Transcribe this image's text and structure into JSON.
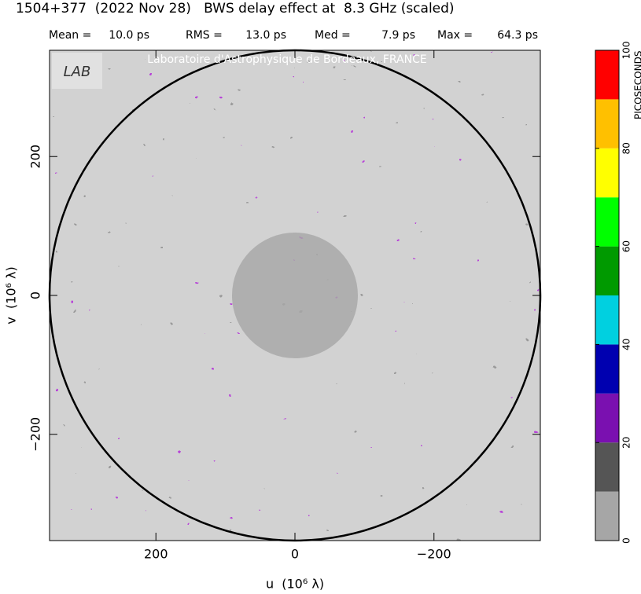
{
  "chart_data": {
    "type": "heatmap",
    "title": "1504+377  (2022 Nov 28)   BWS delay effect at  8.3 GHz (scaled)",
    "stats": [
      {
        "label": "Mean =",
        "value": "10.0 ps"
      },
      {
        "label": "RMS =",
        "value": "13.0 ps"
      },
      {
        "label": "Med =",
        "value": "7.9 ps"
      },
      {
        "label": "Max =",
        "value": "64.3 ps"
      }
    ],
    "watermark": "Laboratoire d'Astrophysique de Bordeaux, FRANCE",
    "logo": "LAB",
    "x_label": "u  (10⁶ λ)",
    "y_label": "v  (10⁶ λ)",
    "xlim": [
      353,
      -353
    ],
    "ylim": [
      -353,
      353
    ],
    "xticks": [
      200,
      0,
      {
        "value": -200,
        "label": "−200"
      }
    ],
    "yticks": [
      {
        "value": -200,
        "label": "−200"
      },
      0,
      200
    ],
    "colorbar": {
      "label": "PICOSECONDS",
      "bounds": [
        0,
        10,
        20,
        30,
        40,
        50,
        60,
        70,
        80,
        90,
        100
      ],
      "colors": [
        "#a6a6a6",
        "#555555",
        "#7a10b0",
        "#0000b0",
        "#00d0e0",
        "#009a00",
        "#00ff00",
        "#ffff00",
        "#ffc000",
        "#ff0000"
      ],
      "ticks": [
        0,
        20,
        40,
        60,
        80,
        100
      ]
    }
  }
}
